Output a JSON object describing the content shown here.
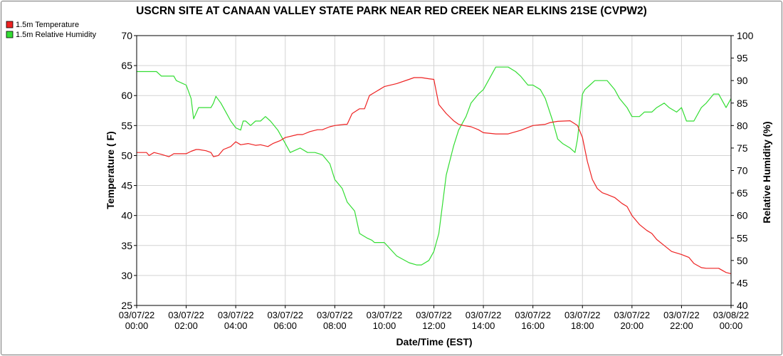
{
  "chart_data": {
    "type": "line",
    "title": "USCRN SITE AT CANAAN VALLEY STATE PARK NEAR RED CREEK NEAR ELKINS 21SE (CVPW2)",
    "xlabel": "Date/Time (EST)",
    "ylabel": "Temperature ( F)",
    "y2label": "Relative Humidity (%)",
    "xlim_hours": [
      0,
      24
    ],
    "ylim": [
      25,
      70
    ],
    "y2lim": [
      40,
      100
    ],
    "yticks": [
      "25",
      "30",
      "35",
      "40",
      "45",
      "50",
      "55",
      "60",
      "65",
      "70"
    ],
    "y2ticks": [
      "40",
      "45",
      "50",
      "55",
      "60",
      "65",
      "70",
      "75",
      "80",
      "85",
      "90",
      "95",
      "100"
    ],
    "xticks": [
      {
        "date": "03/07/22",
        "time": "00:00"
      },
      {
        "date": "03/07/22",
        "time": "02:00"
      },
      {
        "date": "03/07/22",
        "time": "04:00"
      },
      {
        "date": "03/07/22",
        "time": "06:00"
      },
      {
        "date": "03/07/22",
        "time": "08:00"
      },
      {
        "date": "03/07/22",
        "time": "10:00"
      },
      {
        "date": "03/07/22",
        "time": "12:00"
      },
      {
        "date": "03/07/22",
        "time": "14:00"
      },
      {
        "date": "03/07/22",
        "time": "16:00"
      },
      {
        "date": "03/07/22",
        "time": "18:00"
      },
      {
        "date": "03/07/22",
        "time": "20:00"
      },
      {
        "date": "03/07/22",
        "time": "22:00"
      },
      {
        "date": "03/08/22",
        "time": "00:00"
      }
    ],
    "grid": true,
    "legend_position": "top-left",
    "series": [
      {
        "name": "1.5m Temperature",
        "color": "#ee2222",
        "axis": "left",
        "x": [
          0,
          0.4,
          0.5,
          0.7,
          1.0,
          1.3,
          1.5,
          1.7,
          2.0,
          2.2,
          2.4,
          2.5,
          2.8,
          3.0,
          3.1,
          3.3,
          3.5,
          3.8,
          4.0,
          4.2,
          4.5,
          4.8,
          5.0,
          5.3,
          5.5,
          5.8,
          6.0,
          6.5,
          6.7,
          7.0,
          7.3,
          7.5,
          7.8,
          8.0,
          8.4,
          8.5,
          8.7,
          9.0,
          9.2,
          9.4,
          9.6,
          9.8,
          10.0,
          10.5,
          11.0,
          11.2,
          11.5,
          11.8,
          12.0,
          12.2,
          12.5,
          12.8,
          13.0,
          13.2,
          13.5,
          13.8,
          14.0,
          14.5,
          15.0,
          15.5,
          16.0,
          16.5,
          16.7,
          17.0,
          17.5,
          17.8,
          18.0,
          18.2,
          18.4,
          18.6,
          18.8,
          19.0,
          19.3,
          19.6,
          19.8,
          20.0,
          20.3,
          20.6,
          20.8,
          21.0,
          21.3,
          21.6,
          22.0,
          22.3,
          22.5,
          22.8,
          23.0,
          23.5,
          23.8,
          24.0
        ],
        "values": [
          50.5,
          50.5,
          50.0,
          50.5,
          50.2,
          49.8,
          50.3,
          50.3,
          50.3,
          50.7,
          51.0,
          51.0,
          50.8,
          50.5,
          49.8,
          50.0,
          51.0,
          51.5,
          52.3,
          51.8,
          52.0,
          51.7,
          51.8,
          51.5,
          52.0,
          52.5,
          53.0,
          53.5,
          53.5,
          54.0,
          54.3,
          54.3,
          54.8,
          55.0,
          55.2,
          55.2,
          57.0,
          57.8,
          57.8,
          60.0,
          60.5,
          61.0,
          61.5,
          62.0,
          62.7,
          63.0,
          63.0,
          62.8,
          62.7,
          58.5,
          57.0,
          55.8,
          55.2,
          55.0,
          54.8,
          54.3,
          53.8,
          53.6,
          53.6,
          54.2,
          55.0,
          55.2,
          55.5,
          55.7,
          55.8,
          55.0,
          53.0,
          49.0,
          46.0,
          44.5,
          43.8,
          43.5,
          43.0,
          42.0,
          41.5,
          40.0,
          38.5,
          37.5,
          37.0,
          36.0,
          35.0,
          34.0,
          33.5,
          33.0,
          32.0,
          31.3,
          31.2,
          31.2,
          30.5,
          30.3
        ]
      },
      {
        "name": "1.5m Relative Humidity",
        "color": "#33dd33",
        "axis": "right",
        "x": [
          0,
          0.5,
          0.8,
          1.0,
          1.5,
          1.6,
          2.0,
          2.2,
          2.3,
          2.5,
          2.6,
          3.0,
          3.1,
          3.2,
          3.4,
          3.6,
          3.8,
          4.0,
          4.2,
          4.3,
          4.4,
          4.6,
          4.8,
          5.0,
          5.2,
          5.4,
          5.7,
          6.0,
          6.2,
          6.6,
          6.9,
          7.2,
          7.5,
          7.8,
          8.0,
          8.3,
          8.5,
          8.8,
          9.0,
          9.3,
          9.5,
          9.6,
          10.0,
          10.5,
          11.0,
          11.3,
          11.5,
          11.8,
          12.0,
          12.2,
          12.5,
          12.8,
          13.0,
          13.3,
          13.5,
          13.8,
          14.0,
          14.3,
          14.5,
          14.8,
          15.0,
          15.3,
          15.5,
          15.8,
          16.0,
          16.3,
          16.5,
          16.8,
          17.0,
          17.2,
          17.5,
          17.7,
          17.8,
          18.0,
          18.1,
          18.3,
          18.5,
          18.8,
          19.0,
          19.3,
          19.5,
          19.8,
          20.0,
          20.3,
          20.5,
          20.8,
          21.0,
          21.3,
          21.5,
          21.8,
          22.0,
          22.2,
          22.5,
          22.8,
          23.0,
          23.3,
          23.5,
          23.8,
          24.0
        ],
        "values": [
          92,
          92,
          92,
          91,
          91,
          90,
          89,
          86,
          81.5,
          84,
          84,
          84,
          85,
          86.5,
          85,
          83,
          81,
          79.5,
          79,
          81,
          81,
          80,
          81,
          81,
          82,
          81,
          79,
          76,
          74,
          75,
          74,
          74,
          73.5,
          71.5,
          68,
          66,
          63,
          61,
          56,
          55,
          54.5,
          54,
          54,
          51,
          49.5,
          49,
          49,
          50,
          52,
          56,
          69,
          75.5,
          79,
          82,
          85,
          87,
          88,
          91,
          93,
          93,
          93,
          92,
          91,
          89,
          89,
          88,
          86,
          81,
          77,
          76,
          75,
          74,
          77,
          87,
          88,
          89,
          90,
          90,
          90,
          88,
          86,
          84,
          82,
          82,
          83,
          83,
          84,
          85,
          84,
          83,
          84,
          81,
          81,
          84,
          85,
          87,
          87,
          84,
          86
        ]
      }
    ]
  }
}
